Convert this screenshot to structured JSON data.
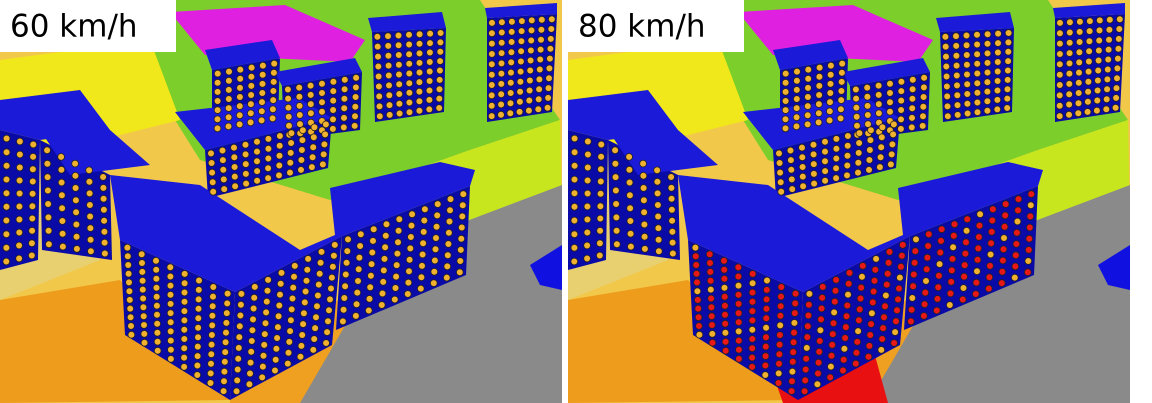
{
  "panels": [
    {
      "label": "60 km/h"
    },
    {
      "label": "80 km/h"
    }
  ]
}
